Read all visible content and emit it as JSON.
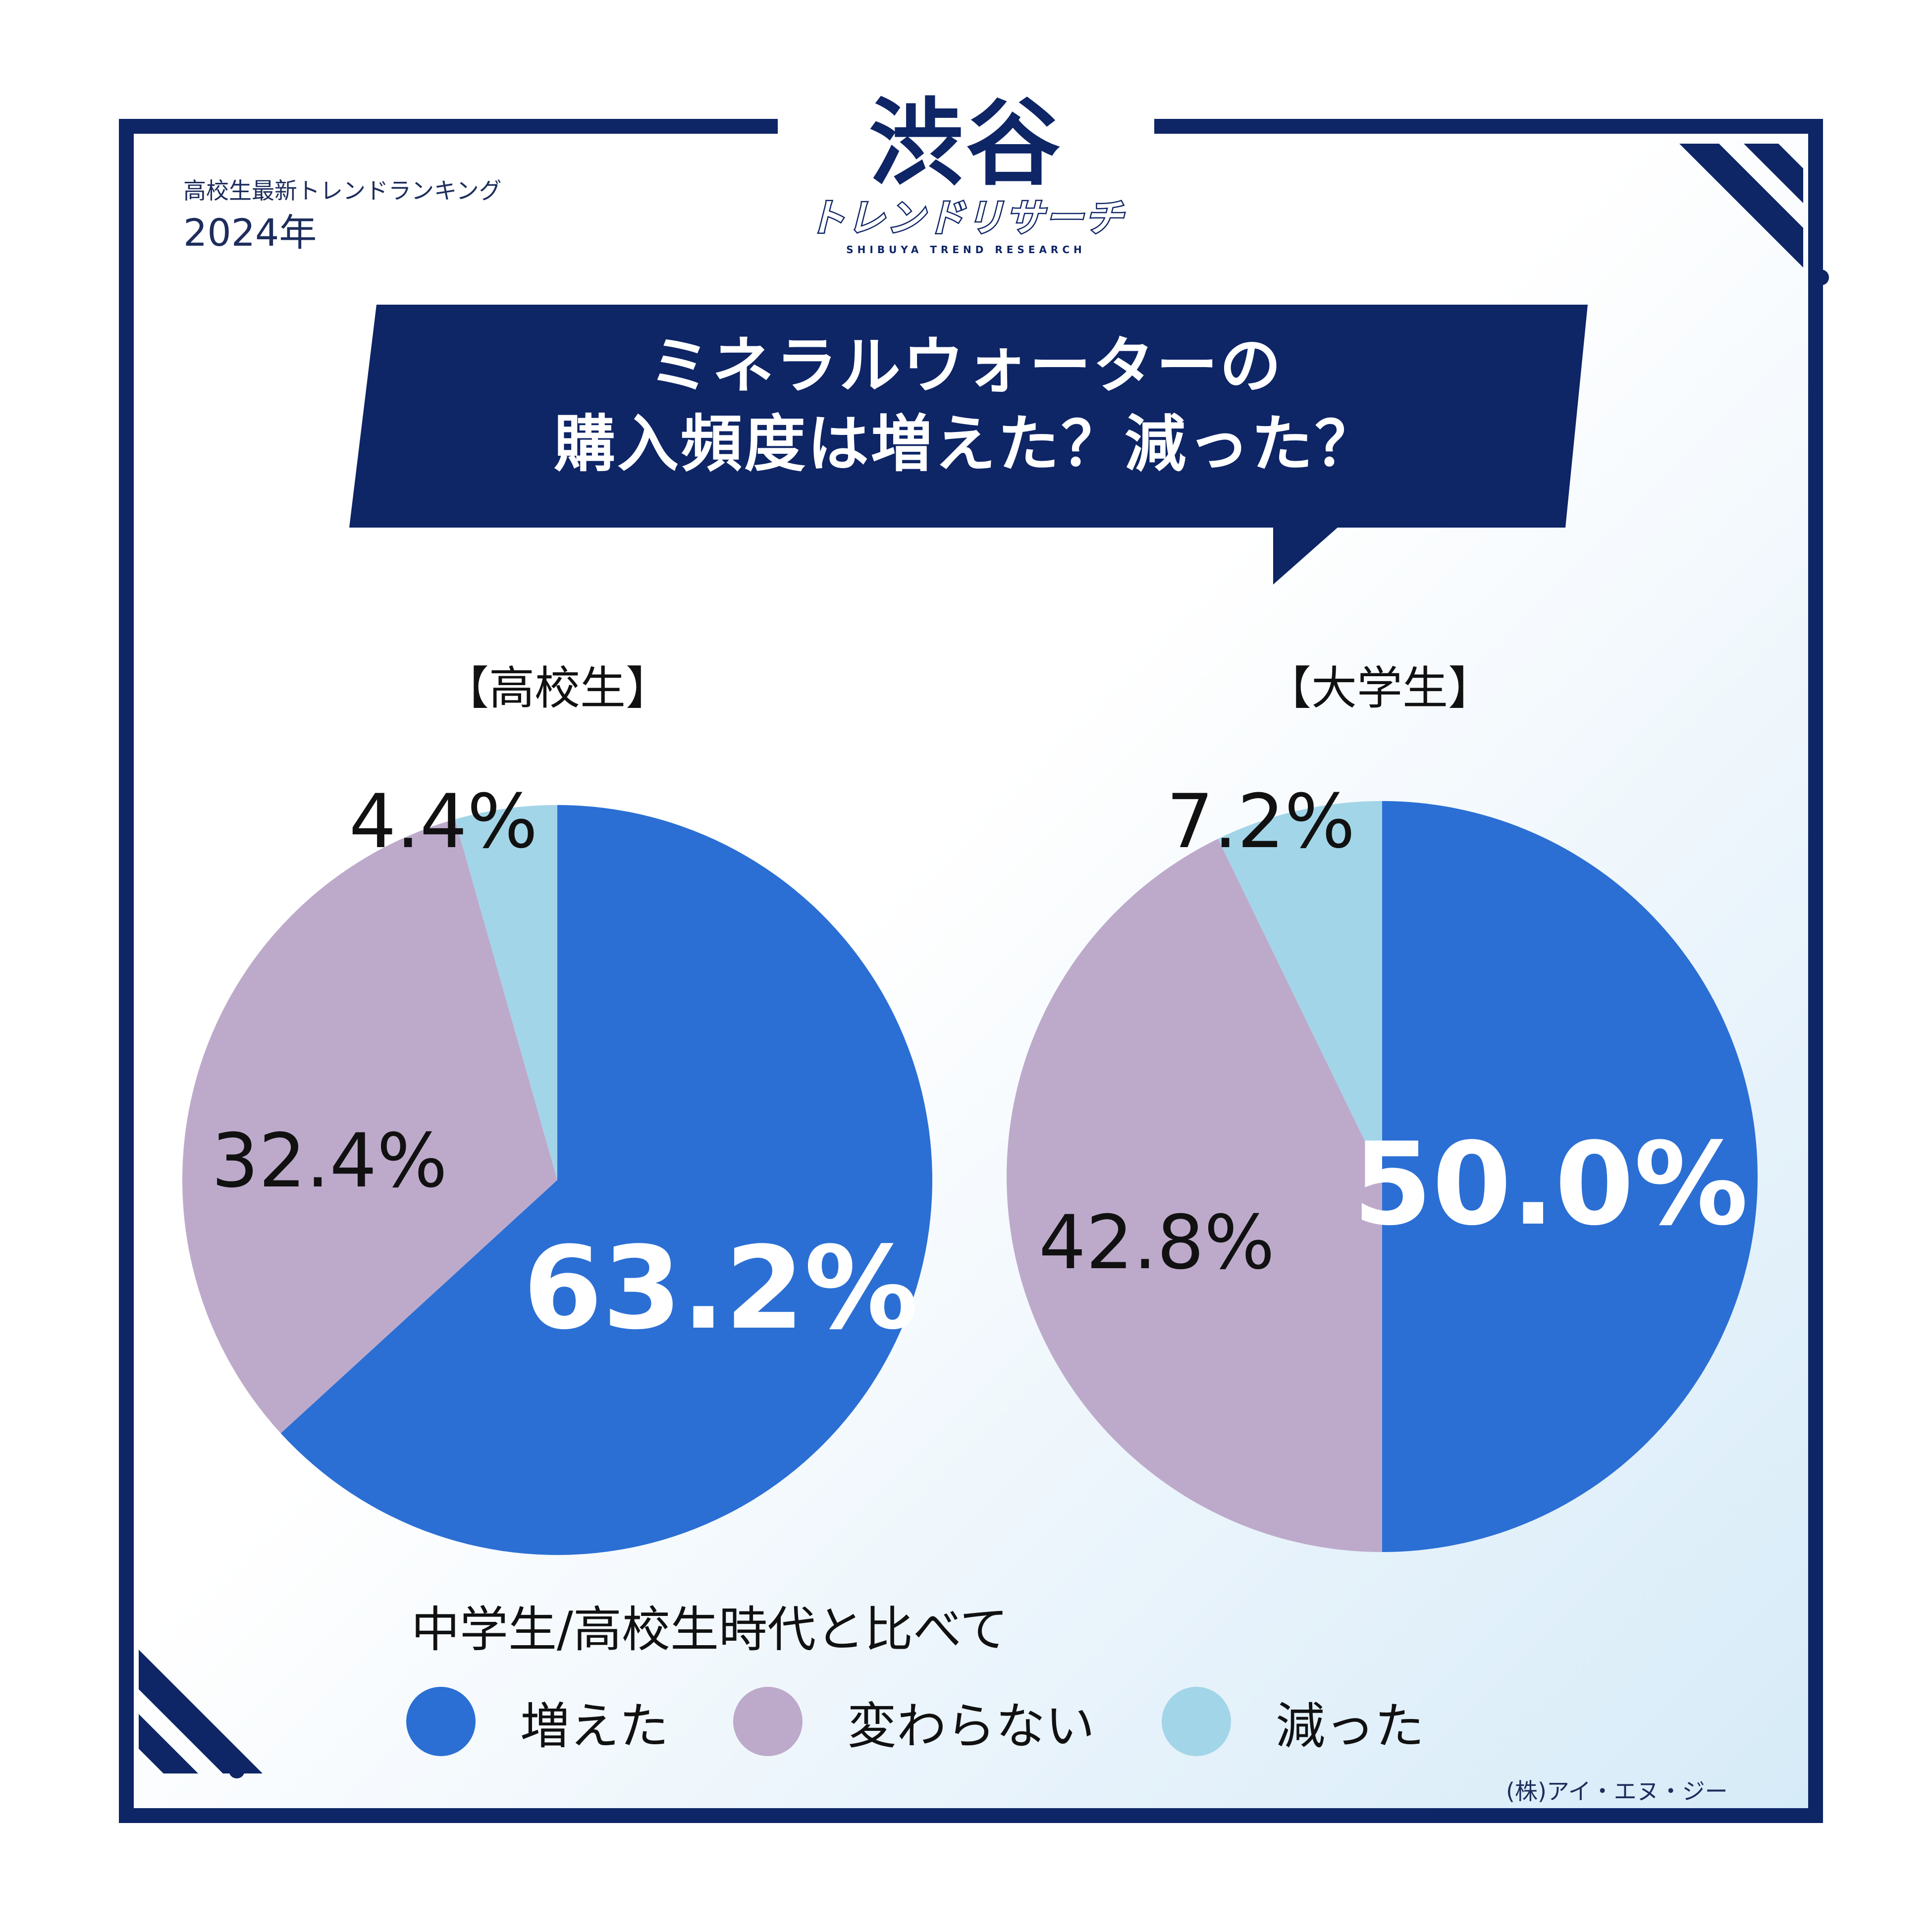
{
  "header": {
    "kicker": "高校生最新トレンドランキング",
    "year": "2024年"
  },
  "logo": {
    "main": "渋谷",
    "sub": "トレンドリサーチ",
    "tagline": "SHIBUYA TREND RESEARCH"
  },
  "title": {
    "line1": "ミネラルウォーターの",
    "line2": "購入頻度は増えた？減った？"
  },
  "legend": {
    "heading": "中学生/高校生時代と比べて",
    "items": [
      {
        "label": "増えた",
        "color": "#2b6fd4"
      },
      {
        "label": "変わらない",
        "color": "#bdaacb"
      },
      {
        "label": "減った",
        "color": "#a3d5e8"
      }
    ]
  },
  "credit": "(株)アイ・エヌ・ジー",
  "colors": {
    "frame": "#0e2566",
    "increased": "#2b6fd4",
    "unchanged": "#bdaacb",
    "decreased": "#a3d5e8"
  },
  "chart_data": [
    {
      "type": "pie",
      "title": "【高校生】",
      "categories": [
        "増えた",
        "変わらない",
        "減った"
      ],
      "values": [
        63.2,
        32.4,
        4.4
      ],
      "labels": [
        "63.2%",
        "32.4%",
        "4.4%"
      ]
    },
    {
      "type": "pie",
      "title": "【大学生】",
      "categories": [
        "増えた",
        "変わらない",
        "減った"
      ],
      "values": [
        50.0,
        42.8,
        7.2
      ],
      "labels": [
        "50.0%",
        "42.8%",
        "7.2%"
      ]
    }
  ]
}
